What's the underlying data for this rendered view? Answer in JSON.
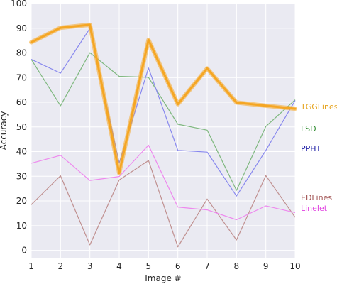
{
  "chart_data": {
    "type": "line",
    "xlabel": "Image #",
    "ylabel": "Accuracy",
    "x": [
      1,
      2,
      3,
      4,
      5,
      6,
      7,
      8,
      9,
      10
    ],
    "xlim": [
      1,
      10
    ],
    "ylim": [
      -3,
      100
    ],
    "xticks": [
      "1",
      "2",
      "3",
      "4",
      "5",
      "6",
      "7",
      "8",
      "9",
      "10"
    ],
    "yticks": [
      0,
      10,
      20,
      30,
      40,
      50,
      60,
      70,
      80,
      90,
      100
    ],
    "ytick_labels": [
      "0",
      "10",
      "20",
      "30",
      "40",
      "50",
      "60",
      "70",
      "80",
      "90",
      "100"
    ],
    "grid": true,
    "background": "#eaeaf2",
    "legend_placement": "right, at series end",
    "series": [
      {
        "name": "EDLines",
        "color": "#c09090",
        "values": [
          18.5,
          30.2,
          2.2,
          28.5,
          36.4,
          1.4,
          20.8,
          4.2,
          30.3,
          13.4
        ]
      },
      {
        "name": "Linelet",
        "color": "#ee88ee",
        "values": [
          35.3,
          38.5,
          28.3,
          29.9,
          42.6,
          17.5,
          16.4,
          12.4,
          18.0,
          15.3
        ]
      },
      {
        "name": "LSD",
        "color": "#7fb87f",
        "values": [
          77.4,
          58.6,
          80.1,
          70.5,
          70.1,
          51.1,
          48.7,
          24.3,
          50.2,
          61.0
        ]
      },
      {
        "name": "PPHT",
        "color": "#8888ee",
        "values": [
          77.4,
          71.8,
          89.9,
          35.4,
          73.9,
          40.5,
          39.8,
          22.0,
          40.5,
          60.7
        ]
      },
      {
        "name": "TGGLines",
        "color": "#f5a623",
        "values": [
          84.3,
          90.2,
          91.4,
          31.3,
          85.3,
          59.2,
          73.7,
          59.9,
          58.6,
          57.4
        ],
        "emphasis": true
      }
    ]
  }
}
